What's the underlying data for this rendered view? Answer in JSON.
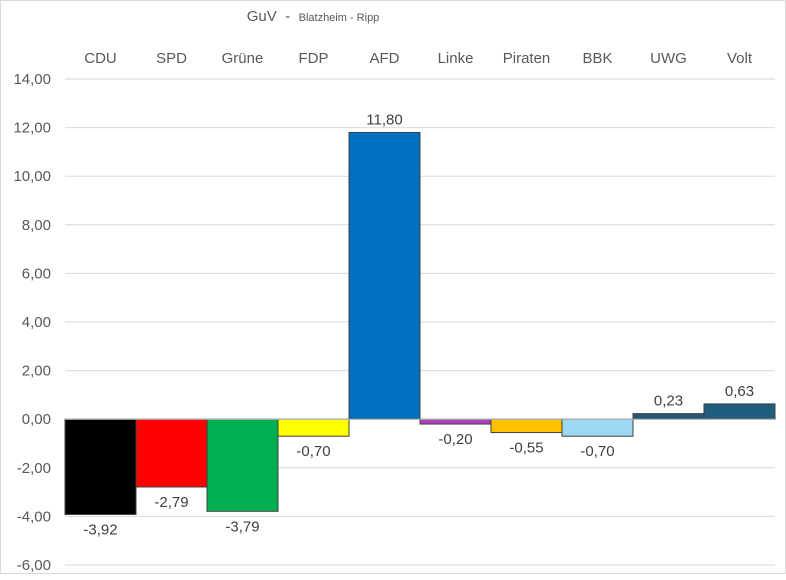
{
  "chart_data": {
    "type": "bar",
    "title": "GuV",
    "title_separator": "-",
    "subtitle": "Blatzheim - Ripp",
    "categories": [
      "CDU",
      "SPD",
      "Grüne",
      "FDP",
      "AFD",
      "Linke",
      "Piraten",
      "BBK",
      "UWG",
      "Volt"
    ],
    "values": [
      -3.92,
      -2.79,
      -3.79,
      -0.7,
      11.8,
      -0.2,
      -0.55,
      -0.7,
      0.23,
      0.63
    ],
    "data_labels": [
      "-3,92",
      "-2,79",
      "-3,79",
      "-0,70",
      "11,80",
      "-0,20",
      "-0,55",
      "-0,70",
      "0,23",
      "0,63"
    ],
    "colors": [
      "#000000",
      "#ff0000",
      "#00b050",
      "#ffff00",
      "#0070c0",
      "#b03fbf",
      "#ffc000",
      "#9dd9f3",
      "#215a78",
      "#1f5c7e"
    ],
    "ylim": [
      -6,
      14
    ],
    "yticks": [
      -6,
      -4,
      -2,
      0,
      2,
      4,
      6,
      8,
      10,
      12,
      14
    ],
    "ytick_labels": [
      "-6,00",
      "-4,00",
      "-2,00",
      "0,00",
      "2,00",
      "4,00",
      "6,00",
      "8,00",
      "10,00",
      "12,00",
      "14,00"
    ],
    "category_labels_position": "top",
    "grid": true,
    "legend": "none",
    "xlabel": "",
    "ylabel": ""
  }
}
